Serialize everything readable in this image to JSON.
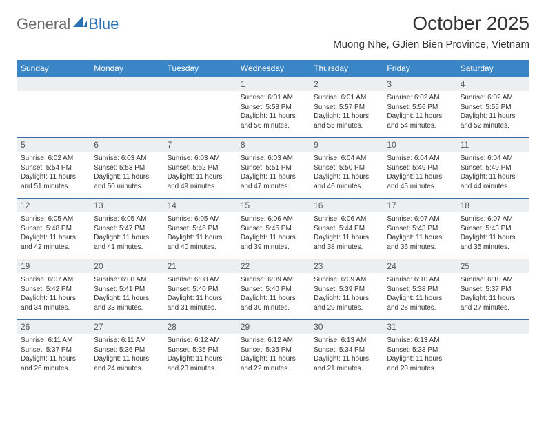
{
  "logo": {
    "text1": "General",
    "text2": "Blue"
  },
  "title": "October 2025",
  "location": "Muong Nhe, GJien Bien Province, Vietnam",
  "colors": {
    "header_bg": "#3a85c6",
    "header_text": "#ffffff",
    "daynum_bg": "#eceff1",
    "row_border": "#3a6ea5",
    "logo_gray": "#6b6b6b",
    "logo_blue": "#2a72b5",
    "body_text": "#333333"
  },
  "weekdays": [
    "Sunday",
    "Monday",
    "Tuesday",
    "Wednesday",
    "Thursday",
    "Friday",
    "Saturday"
  ],
  "weeks": [
    [
      {
        "blank": true
      },
      {
        "blank": true
      },
      {
        "blank": true
      },
      {
        "day": "1",
        "sunrise": "Sunrise: 6:01 AM",
        "sunset": "Sunset: 5:58 PM",
        "daylight": "Daylight: 11 hours and 56 minutes."
      },
      {
        "day": "2",
        "sunrise": "Sunrise: 6:01 AM",
        "sunset": "Sunset: 5:57 PM",
        "daylight": "Daylight: 11 hours and 55 minutes."
      },
      {
        "day": "3",
        "sunrise": "Sunrise: 6:02 AM",
        "sunset": "Sunset: 5:56 PM",
        "daylight": "Daylight: 11 hours and 54 minutes."
      },
      {
        "day": "4",
        "sunrise": "Sunrise: 6:02 AM",
        "sunset": "Sunset: 5:55 PM",
        "daylight": "Daylight: 11 hours and 52 minutes."
      }
    ],
    [
      {
        "day": "5",
        "sunrise": "Sunrise: 6:02 AM",
        "sunset": "Sunset: 5:54 PM",
        "daylight": "Daylight: 11 hours and 51 minutes."
      },
      {
        "day": "6",
        "sunrise": "Sunrise: 6:03 AM",
        "sunset": "Sunset: 5:53 PM",
        "daylight": "Daylight: 11 hours and 50 minutes."
      },
      {
        "day": "7",
        "sunrise": "Sunrise: 6:03 AM",
        "sunset": "Sunset: 5:52 PM",
        "daylight": "Daylight: 11 hours and 49 minutes."
      },
      {
        "day": "8",
        "sunrise": "Sunrise: 6:03 AM",
        "sunset": "Sunset: 5:51 PM",
        "daylight": "Daylight: 11 hours and 47 minutes."
      },
      {
        "day": "9",
        "sunrise": "Sunrise: 6:04 AM",
        "sunset": "Sunset: 5:50 PM",
        "daylight": "Daylight: 11 hours and 46 minutes."
      },
      {
        "day": "10",
        "sunrise": "Sunrise: 6:04 AM",
        "sunset": "Sunset: 5:49 PM",
        "daylight": "Daylight: 11 hours and 45 minutes."
      },
      {
        "day": "11",
        "sunrise": "Sunrise: 6:04 AM",
        "sunset": "Sunset: 5:49 PM",
        "daylight": "Daylight: 11 hours and 44 minutes."
      }
    ],
    [
      {
        "day": "12",
        "sunrise": "Sunrise: 6:05 AM",
        "sunset": "Sunset: 5:48 PM",
        "daylight": "Daylight: 11 hours and 42 minutes."
      },
      {
        "day": "13",
        "sunrise": "Sunrise: 6:05 AM",
        "sunset": "Sunset: 5:47 PM",
        "daylight": "Daylight: 11 hours and 41 minutes."
      },
      {
        "day": "14",
        "sunrise": "Sunrise: 6:05 AM",
        "sunset": "Sunset: 5:46 PM",
        "daylight": "Daylight: 11 hours and 40 minutes."
      },
      {
        "day": "15",
        "sunrise": "Sunrise: 6:06 AM",
        "sunset": "Sunset: 5:45 PM",
        "daylight": "Daylight: 11 hours and 39 minutes."
      },
      {
        "day": "16",
        "sunrise": "Sunrise: 6:06 AM",
        "sunset": "Sunset: 5:44 PM",
        "daylight": "Daylight: 11 hours and 38 minutes."
      },
      {
        "day": "17",
        "sunrise": "Sunrise: 6:07 AM",
        "sunset": "Sunset: 5:43 PM",
        "daylight": "Daylight: 11 hours and 36 minutes."
      },
      {
        "day": "18",
        "sunrise": "Sunrise: 6:07 AM",
        "sunset": "Sunset: 5:43 PM",
        "daylight": "Daylight: 11 hours and 35 minutes."
      }
    ],
    [
      {
        "day": "19",
        "sunrise": "Sunrise: 6:07 AM",
        "sunset": "Sunset: 5:42 PM",
        "daylight": "Daylight: 11 hours and 34 minutes."
      },
      {
        "day": "20",
        "sunrise": "Sunrise: 6:08 AM",
        "sunset": "Sunset: 5:41 PM",
        "daylight": "Daylight: 11 hours and 33 minutes."
      },
      {
        "day": "21",
        "sunrise": "Sunrise: 6:08 AM",
        "sunset": "Sunset: 5:40 PM",
        "daylight": "Daylight: 11 hours and 31 minutes."
      },
      {
        "day": "22",
        "sunrise": "Sunrise: 6:09 AM",
        "sunset": "Sunset: 5:40 PM",
        "daylight": "Daylight: 11 hours and 30 minutes."
      },
      {
        "day": "23",
        "sunrise": "Sunrise: 6:09 AM",
        "sunset": "Sunset: 5:39 PM",
        "daylight": "Daylight: 11 hours and 29 minutes."
      },
      {
        "day": "24",
        "sunrise": "Sunrise: 6:10 AM",
        "sunset": "Sunset: 5:38 PM",
        "daylight": "Daylight: 11 hours and 28 minutes."
      },
      {
        "day": "25",
        "sunrise": "Sunrise: 6:10 AM",
        "sunset": "Sunset: 5:37 PM",
        "daylight": "Daylight: 11 hours and 27 minutes."
      }
    ],
    [
      {
        "day": "26",
        "sunrise": "Sunrise: 6:11 AM",
        "sunset": "Sunset: 5:37 PM",
        "daylight": "Daylight: 11 hours and 26 minutes."
      },
      {
        "day": "27",
        "sunrise": "Sunrise: 6:11 AM",
        "sunset": "Sunset: 5:36 PM",
        "daylight": "Daylight: 11 hours and 24 minutes."
      },
      {
        "day": "28",
        "sunrise": "Sunrise: 6:12 AM",
        "sunset": "Sunset: 5:35 PM",
        "daylight": "Daylight: 11 hours and 23 minutes."
      },
      {
        "day": "29",
        "sunrise": "Sunrise: 6:12 AM",
        "sunset": "Sunset: 5:35 PM",
        "daylight": "Daylight: 11 hours and 22 minutes."
      },
      {
        "day": "30",
        "sunrise": "Sunrise: 6:13 AM",
        "sunset": "Sunset: 5:34 PM",
        "daylight": "Daylight: 11 hours and 21 minutes."
      },
      {
        "day": "31",
        "sunrise": "Sunrise: 6:13 AM",
        "sunset": "Sunset: 5:33 PM",
        "daylight": "Daylight: 11 hours and 20 minutes."
      },
      {
        "blank": true
      }
    ]
  ]
}
